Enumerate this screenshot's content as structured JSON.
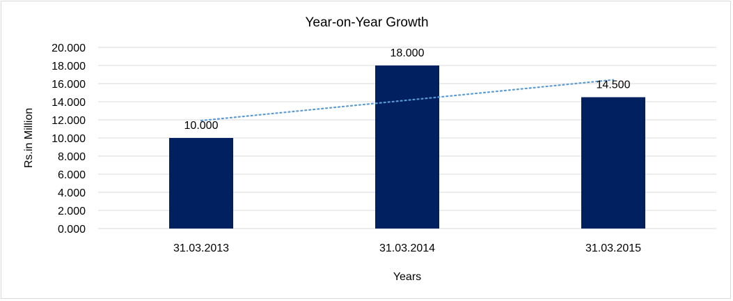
{
  "chart_data": {
    "type": "bar",
    "title": "Year-on-Year Growth",
    "xlabel": "Years",
    "ylabel": "Rs.in Million",
    "categories": [
      "31.03.2013",
      "31.03.2014",
      "31.03.2015"
    ],
    "values": [
      10,
      18,
      14.5
    ],
    "data_labels": [
      "10.000",
      "18.000",
      "14.500"
    ],
    "ylim": [
      0,
      20
    ],
    "yticks": [
      "0.000",
      "2.000",
      "4.000",
      "6.000",
      "8.000",
      "10.000",
      "12.000",
      "14.000",
      "16.000",
      "18.000",
      "20.000"
    ],
    "grid": true,
    "trendline": "linear, dotted",
    "colors": {
      "bar": "#002060",
      "trendline": "#5B9BD5",
      "grid": "#d9d9d9"
    }
  }
}
